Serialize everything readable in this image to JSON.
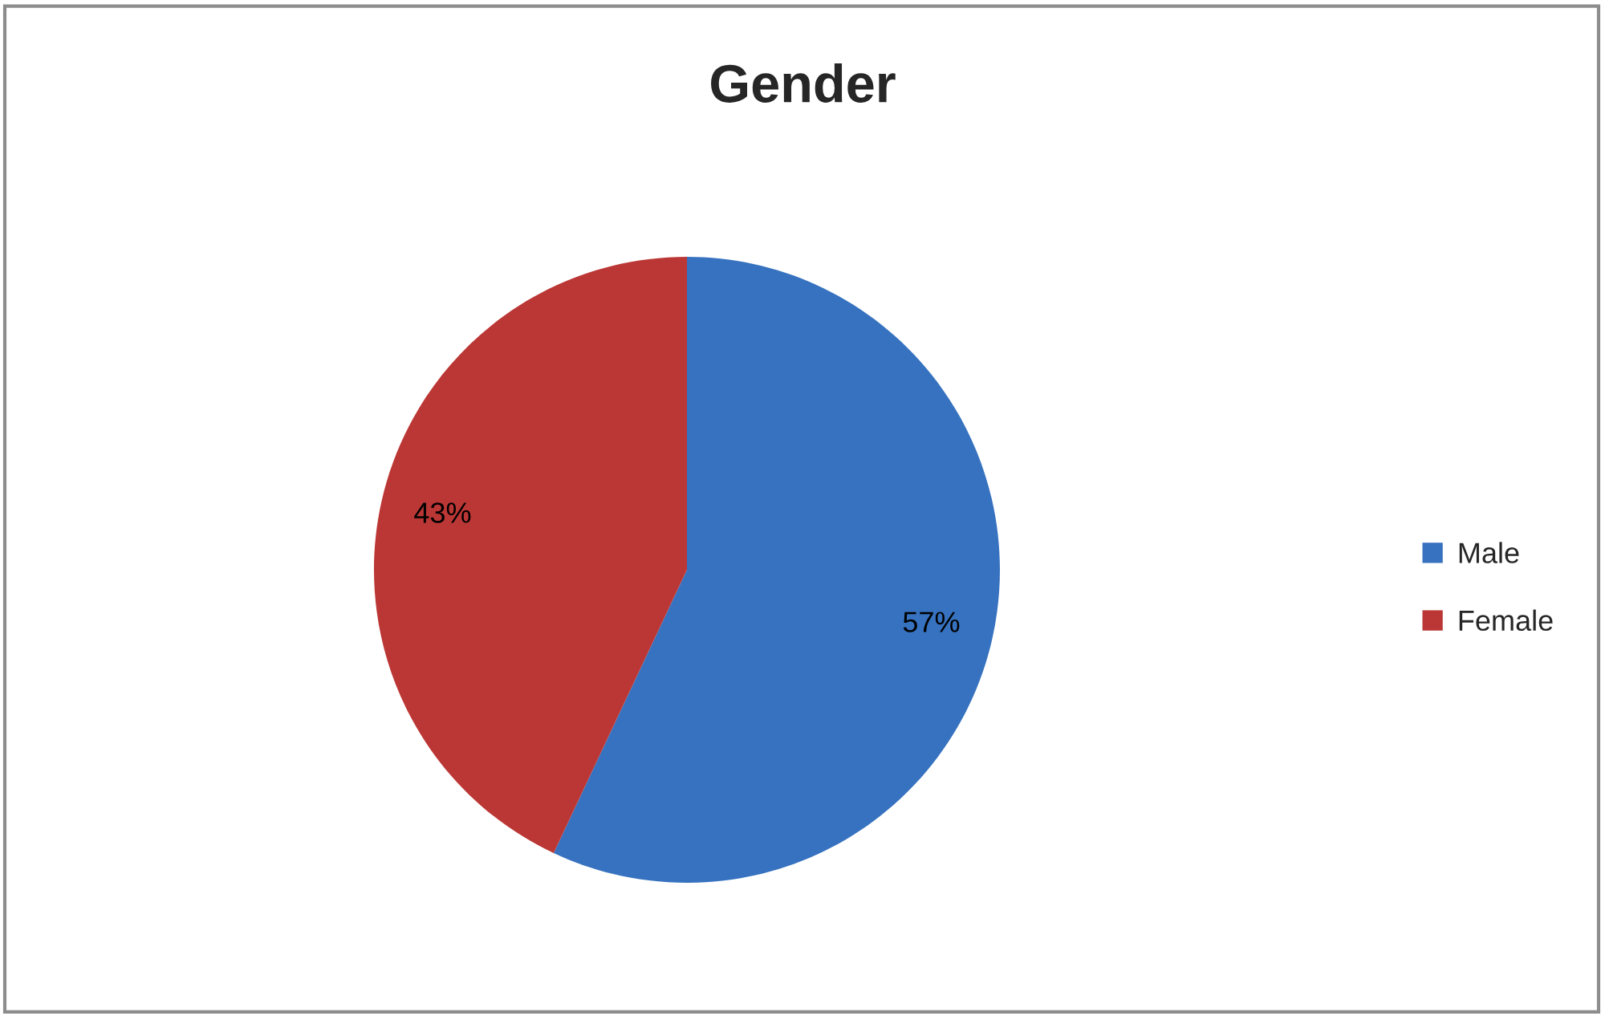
{
  "chart_data": {
    "type": "pie",
    "title": "Gender",
    "categories": [
      "Male",
      "Female"
    ],
    "values": [
      57,
      43
    ],
    "colors": [
      "#3672bf",
      "#bb3735"
    ],
    "value_labels": [
      "57%",
      "43%"
    ],
    "legend": "right"
  }
}
